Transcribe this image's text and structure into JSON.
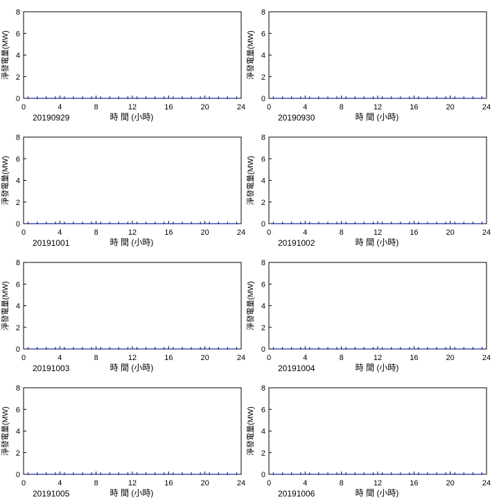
{
  "chart_data": [
    {
      "type": "line",
      "date_label": "20190929",
      "xlabel": "時 間 (小時)",
      "ylabel": "淨發電量(MW)",
      "xlim": [
        0,
        24
      ],
      "ylim": [
        0,
        8
      ],
      "xticks": [
        0,
        4,
        8,
        12,
        16,
        20,
        24
      ],
      "yticks": [
        0,
        2,
        4,
        6,
        8
      ],
      "series": [
        {
          "values": [
            0,
            0,
            0,
            0,
            0,
            0,
            0,
            0,
            0,
            0,
            0,
            0,
            0,
            0,
            0,
            0,
            0,
            0,
            0,
            0,
            0,
            0,
            0,
            0
          ],
          "color": "#1f2f9a"
        }
      ]
    },
    {
      "type": "line",
      "date_label": "20190930",
      "xlabel": "時 間 (小時)",
      "ylabel": "淨發電量(MW)",
      "xlim": [
        0,
        24
      ],
      "ylim": [
        0,
        8
      ],
      "xticks": [
        0,
        4,
        8,
        12,
        16,
        20,
        24
      ],
      "yticks": [
        0,
        2,
        4,
        6,
        8
      ],
      "series": [
        {
          "values": [
            0,
            0,
            0,
            0,
            0,
            0,
            0,
            0,
            0,
            0,
            0,
            0,
            0,
            0,
            0,
            0,
            0,
            0,
            0,
            0,
            0,
            0,
            0,
            0
          ],
          "color": "#1f2f9a"
        }
      ]
    },
    {
      "type": "line",
      "date_label": "20191001",
      "xlabel": "時 間 (小時)",
      "ylabel": "淨發電量(MW)",
      "xlim": [
        0,
        24
      ],
      "ylim": [
        0,
        8
      ],
      "xticks": [
        0,
        4,
        8,
        12,
        16,
        20,
        24
      ],
      "yticks": [
        0,
        2,
        4,
        6,
        8
      ],
      "series": [
        {
          "values": [
            0,
            0,
            0,
            0,
            0,
            0,
            0,
            0,
            0,
            0,
            0,
            0,
            0,
            0,
            0,
            0,
            0,
            0,
            0,
            0,
            0,
            0,
            0,
            0
          ],
          "color": "#1f2f9a"
        }
      ]
    },
    {
      "type": "line",
      "date_label": "20191002",
      "xlabel": "時 間 (小時)",
      "ylabel": "淨發電量(MW)",
      "xlim": [
        0,
        24
      ],
      "ylim": [
        0,
        8
      ],
      "xticks": [
        0,
        4,
        8,
        12,
        16,
        20,
        24
      ],
      "yticks": [
        0,
        2,
        4,
        6,
        8
      ],
      "series": [
        {
          "values": [
            0,
            0,
            0,
            0,
            0,
            0,
            0,
            0,
            0,
            0,
            0,
            0,
            0,
            0,
            0,
            0,
            0,
            0,
            0,
            0,
            0,
            0,
            0,
            0
          ],
          "color": "#1f2f9a"
        }
      ]
    },
    {
      "type": "line",
      "date_label": "20191003",
      "xlabel": "時 間 (小時)",
      "ylabel": "淨發電量(MW)",
      "xlim": [
        0,
        24
      ],
      "ylim": [
        0,
        8
      ],
      "xticks": [
        0,
        4,
        8,
        12,
        16,
        20,
        24
      ],
      "yticks": [
        0,
        2,
        4,
        6,
        8
      ],
      "series": [
        {
          "values": [
            0,
            0,
            0,
            0,
            0,
            0,
            0,
            0,
            0,
            0,
            0,
            0,
            0,
            0,
            0,
            0,
            0,
            0,
            0,
            0,
            0,
            0,
            0,
            0
          ],
          "color": "#1f2f9a"
        }
      ]
    },
    {
      "type": "line",
      "date_label": "20191004",
      "xlabel": "時 間 (小時)",
      "ylabel": "淨發電量(MW)",
      "xlim": [
        0,
        24
      ],
      "ylim": [
        0,
        8
      ],
      "xticks": [
        0,
        4,
        8,
        12,
        16,
        20,
        24
      ],
      "yticks": [
        0,
        2,
        4,
        6,
        8
      ],
      "series": [
        {
          "values": [
            0,
            0,
            0,
            0,
            0,
            0,
            0,
            0,
            0,
            0,
            0,
            0,
            0,
            0,
            0,
            0,
            0,
            0,
            0,
            0,
            0,
            0,
            0,
            0
          ],
          "color": "#1f2f9a"
        }
      ]
    },
    {
      "type": "line",
      "date_label": "20191005",
      "xlabel": "時 間 (小時)",
      "ylabel": "淨發電量(MW)",
      "xlim": [
        0,
        24
      ],
      "ylim": [
        0,
        8
      ],
      "xticks": [
        0,
        4,
        8,
        12,
        16,
        20,
        24
      ],
      "yticks": [
        0,
        2,
        4,
        6,
        8
      ],
      "series": [
        {
          "values": [
            0,
            0,
            0,
            0,
            0,
            0,
            0,
            0,
            0,
            0,
            0,
            0,
            0,
            0,
            0,
            0,
            0,
            0,
            0,
            0,
            0,
            0,
            0,
            0
          ],
          "color": "#1f2f9a"
        }
      ]
    },
    {
      "type": "line",
      "date_label": "20191006",
      "xlabel": "時 間 (小時)",
      "ylabel": "淨發電量(MW)",
      "xlim": [
        0,
        24
      ],
      "ylim": [
        0,
        8
      ],
      "xticks": [
        0,
        4,
        8,
        12,
        16,
        20,
        24
      ],
      "yticks": [
        0,
        2,
        4,
        6,
        8
      ],
      "series": [
        {
          "values": [
            0,
            0,
            0,
            0,
            0,
            0,
            0,
            0,
            0,
            0,
            0,
            0,
            0,
            0,
            0,
            0,
            0,
            0,
            0,
            0,
            0,
            0,
            0,
            0
          ],
          "color": "#1f2f9a"
        }
      ]
    }
  ]
}
